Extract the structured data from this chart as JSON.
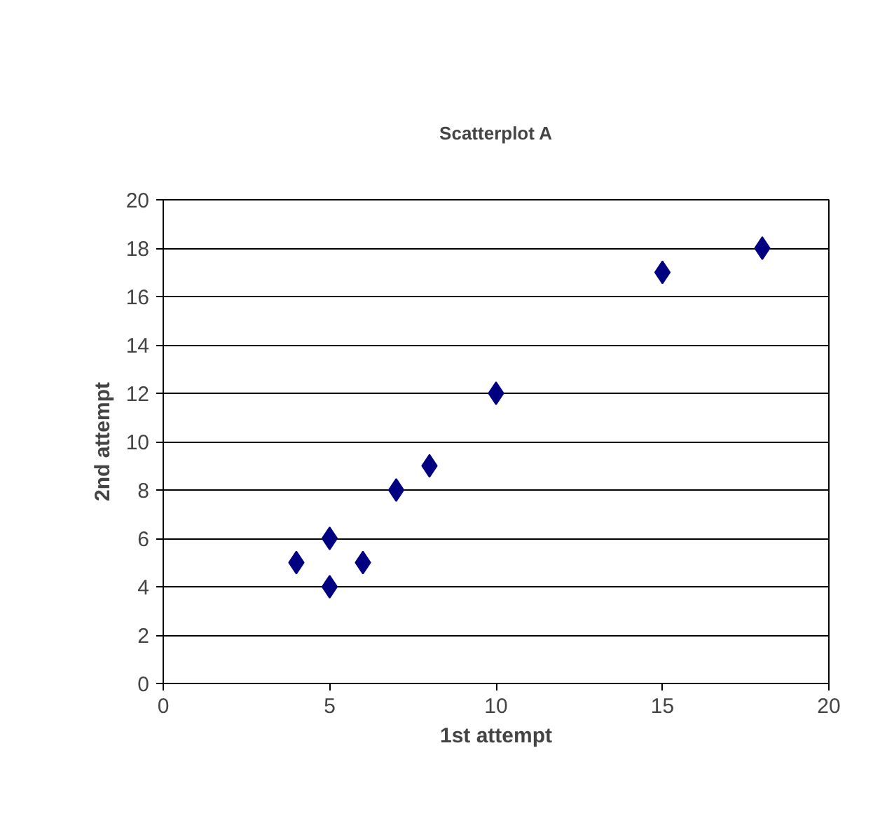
{
  "chart_data": {
    "type": "scatter",
    "title": "Scatterplot A",
    "xlabel": "1st attempt",
    "ylabel": "2nd attempt",
    "x": [
      4,
      5,
      5,
      6,
      7,
      8,
      10,
      15,
      18
    ],
    "series": [
      {
        "color": "#000080",
        "values": [
          5,
          6,
          4,
          5,
          8,
          9,
          12,
          17,
          18
        ]
      }
    ],
    "xlim": [
      0,
      20
    ],
    "xticks": [
      0,
      5,
      10,
      15,
      20
    ],
    "ylim": [
      0,
      20
    ],
    "yticks": [
      0,
      2,
      4,
      6,
      8,
      10,
      12,
      14,
      16,
      18,
      20
    ],
    "grid": "y",
    "marker": "diamond"
  }
}
